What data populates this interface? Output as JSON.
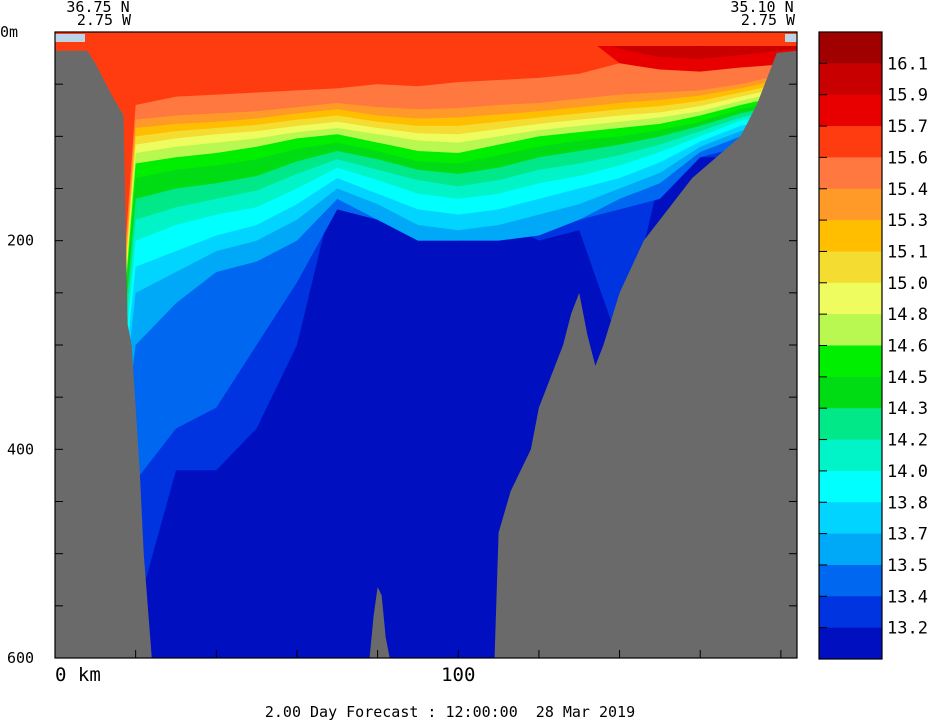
{
  "chart_data": {
    "type": "heatmap",
    "title": "",
    "corner_labels": {
      "left_lat": "36.75 N",
      "left_lon": "2.75 W",
      "right_lat": "35.10 N",
      "right_lon": "2.75 W"
    },
    "x_axis": {
      "unit": "km",
      "ticks": [
        {
          "value": 0,
          "label": "0 km"
        },
        {
          "value": 100,
          "label": "100"
        }
      ],
      "range": [
        0,
        184
      ]
    },
    "y_axis": {
      "unit": "m",
      "ticks": [
        {
          "value": 0,
          "label": "0m"
        },
        {
          "value": 200,
          "label": "200"
        },
        {
          "value": 400,
          "label": "400"
        },
        {
          "value": 600,
          "label": "600"
        }
      ],
      "range": [
        0,
        600
      ],
      "inverted": true
    },
    "footer": "2.00 Day Forecast : 12:00:00  28 Mar 2019",
    "colorbar": [
      {
        "label": "16.1",
        "color": "#a00000"
      },
      {
        "label": "15.9",
        "color": "#c80000"
      },
      {
        "label": "15.7",
        "color": "#e80000"
      },
      {
        "label": "15.6",
        "color": "#ff3c10"
      },
      {
        "label": "15.4",
        "color": "#ff7840"
      },
      {
        "label": "15.3",
        "color": "#ff9a28"
      },
      {
        "label": "15.1",
        "color": "#ffbe00"
      },
      {
        "label": "15.0",
        "color": "#f4dc30"
      },
      {
        "label": "14.8",
        "color": "#eefc60"
      },
      {
        "label": "14.6",
        "color": "#b8f850"
      },
      {
        "label": "14.5",
        "color": "#00ee00"
      },
      {
        "label": "14.3",
        "color": "#00dc14"
      },
      {
        "label": "14.2",
        "color": "#00e888"
      },
      {
        "label": "14.0",
        "color": "#00f4c8"
      },
      {
        "label": "13.8",
        "color": "#00ffff"
      },
      {
        "label": "13.7",
        "color": "#00d4ff"
      },
      {
        "label": "13.5",
        "color": "#00a8f8"
      },
      {
        "label": "13.4",
        "color": "#0068f0"
      },
      {
        "label": "13.2",
        "color": "#0034e0"
      },
      {
        "label": "",
        "color": "#0010c0"
      }
    ],
    "land_color": "#6a6a6a"
  }
}
